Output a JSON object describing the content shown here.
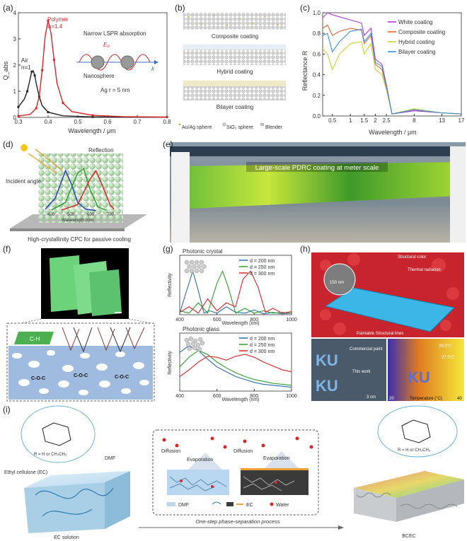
{
  "panels": {
    "a": {
      "label": "(a)",
      "air_label": "Air",
      "air_n": "n=1",
      "polymer_label": "Polymer",
      "polymer_n": "n=1.4",
      "narrow": "Narrow LSPR absorption",
      "e0": "E₀",
      "k": "k",
      "nanosphere": "Nanosphere",
      "ag": "Ag r = 5 nm"
    },
    "b": {
      "label": "(b)",
      "composite": "Composite coating",
      "hybrid": "Hybrid coating",
      "bilayer": "Bilayer coating",
      "legend_auag": "Au/Ag sphere",
      "legend_sio2": "SiO₂ sphere",
      "legend_blender": "Blender"
    },
    "c": {
      "label": "(c)"
    },
    "d": {
      "label": "(d)",
      "incident": "Incident angle",
      "reflection": "Reflection",
      "wavelength": "Wavelength (nm)",
      "caption": "High-crystallinity CPC for passive cooling",
      "ticks": [
        "400",
        "500",
        "600",
        "700"
      ]
    },
    "e": {
      "label": "(e)",
      "banner": "Large-scale PDRC coating at meter scale"
    },
    "f": {
      "label": "(f)",
      "ch": "C-H",
      "coc": "C-O-C"
    },
    "g": {
      "label": "(g)"
    },
    "h": {
      "label": "(h)",
      "scale": "150 nm",
      "structural": "Structural color",
      "thermal": "Thermal radiation",
      "paintable": "Paintable Structural lines",
      "commercial": "Commercial paint",
      "thiswork": "This work",
      "cm": "3 cm",
      "t1": "29.3°C",
      "t2": "27.5°C",
      "temp": "Temperature (°C)",
      "tmin": "20",
      "tmax": "40",
      "ku": "KU"
    },
    "i": {
      "label": "(i)",
      "ec": "Ethyl cellulose (EC)",
      "dmf": "DMF",
      "rgroup": "R = H or CH₂CH₃",
      "rgroup2": "R = H or CH₂CH₃",
      "ecsol": "EC solution",
      "diff1": "Diffusion",
      "evap1": "Evaporation",
      "diff2": "Diffusion",
      "evap2": "Evaporation",
      "leg_dmf": "DMF",
      "leg_ec": "EC",
      "leg_water": "Water",
      "process": "One-step phase-separation process",
      "bcec": "BCEC"
    }
  },
  "chart_data": [
    {
      "id": "a",
      "type": "line",
      "xlabel": "Wavelength / μm",
      "ylabel": "Q_abs",
      "xlim": [
        0.3,
        0.8
      ],
      "ylim": [
        0,
        4
      ],
      "xticks": [
        "0.3",
        "0.4",
        "0.5",
        "0.6",
        "0.7",
        "0.8"
      ],
      "yticks": [
        "0",
        "1",
        "2",
        "3",
        "4"
      ],
      "series": [
        {
          "name": "Air",
          "color": "#222222",
          "x": [
            0.3,
            0.32,
            0.33,
            0.34,
            0.345,
            0.35,
            0.355,
            0.36,
            0.37,
            0.38,
            0.4,
            0.45,
            0.55,
            0.7,
            0.8
          ],
          "y": [
            0.4,
            0.7,
            1.0,
            1.5,
            1.75,
            1.78,
            1.6,
            1.3,
            0.8,
            0.45,
            0.2,
            0.06,
            0.02,
            0.01,
            0.01
          ]
        },
        {
          "name": "Polymer",
          "color": "#d62728",
          "x": [
            0.3,
            0.34,
            0.36,
            0.37,
            0.38,
            0.39,
            0.4,
            0.41,
            0.42,
            0.43,
            0.45,
            0.48,
            0.55,
            0.65,
            0.8
          ],
          "y": [
            0.05,
            0.12,
            0.35,
            0.8,
            1.8,
            3.1,
            3.7,
            3.2,
            2.2,
            1.3,
            0.55,
            0.22,
            0.08,
            0.03,
            0.01
          ]
        }
      ]
    },
    {
      "id": "c",
      "type": "line",
      "xlabel": "Wavelength / μm",
      "ylabel": "Reflectance R",
      "xlim": [
        0.3,
        17
      ],
      "ylim": [
        0,
        1.0
      ],
      "xticks": [
        "0.5",
        "1",
        "1.5",
        "2",
        "2.5",
        "8",
        "13",
        "17"
      ],
      "yticks": [
        "0.0",
        "0.2",
        "0.4",
        "0.6",
        "0.8",
        "1.0"
      ],
      "legend": [
        "White coating",
        "Composite coating",
        "Hybrid coating",
        "Bilayer coating"
      ],
      "series": [
        {
          "name": "White coating",
          "color": "#b23cd4",
          "x": [
            0.3,
            0.4,
            0.5,
            0.7,
            1.0,
            1.4,
            1.5,
            1.8,
            2.0,
            2.3,
            2.5,
            2.7,
            8,
            13,
            17
          ],
          "y": [
            0.95,
            1.0,
            0.98,
            0.96,
            0.93,
            0.9,
            0.78,
            0.85,
            0.55,
            0.5,
            0.3,
            0.02,
            0.05,
            0.03,
            0.02
          ]
        },
        {
          "name": "Composite coating",
          "color": "#e8622b",
          "x": [
            0.3,
            0.4,
            0.5,
            0.7,
            1.0,
            1.4,
            1.5,
            1.8,
            2.0,
            2.3,
            2.5,
            2.7,
            8,
            13,
            17
          ],
          "y": [
            0.85,
            0.88,
            0.78,
            0.82,
            0.85,
            0.83,
            0.7,
            0.78,
            0.5,
            0.45,
            0.27,
            0.02,
            0.06,
            0.03,
            0.02
          ]
        },
        {
          "name": "Hybrid coating",
          "color": "#c8d62a",
          "x": [
            0.3,
            0.4,
            0.5,
            0.7,
            1.0,
            1.4,
            1.5,
            1.8,
            2.0,
            2.3,
            2.5,
            2.7,
            8,
            13,
            17
          ],
          "y": [
            0.65,
            0.6,
            0.45,
            0.6,
            0.7,
            0.72,
            0.6,
            0.7,
            0.45,
            0.4,
            0.25,
            0.02,
            0.07,
            0.03,
            0.02
          ]
        },
        {
          "name": "Bilayer coating",
          "color": "#3a8fe0",
          "x": [
            0.3,
            0.4,
            0.5,
            0.7,
            1.0,
            1.4,
            1.5,
            1.8,
            2.0,
            2.3,
            2.5,
            2.7,
            8,
            13,
            17
          ],
          "y": [
            0.78,
            0.8,
            0.62,
            0.72,
            0.82,
            0.84,
            0.72,
            0.8,
            0.52,
            0.48,
            0.28,
            0.02,
            0.06,
            0.03,
            0.02
          ]
        }
      ]
    },
    {
      "id": "g1",
      "type": "line",
      "title": "Photonic crystal",
      "xlabel": "Wavelength (nm)",
      "ylabel": "Reflectivity",
      "xlim": [
        400,
        1000
      ],
      "ylim": [
        0,
        0.75
      ],
      "xticks": [
        "400",
        "600",
        "800",
        "1000"
      ],
      "legend": [
        "d = 200 nm",
        "d = 250 nm",
        "d = 300 nm"
      ],
      "series": [
        {
          "name": "d = 200 nm",
          "color": "#2b6cb0",
          "x": [
            400,
            430,
            470,
            500,
            530,
            560,
            600,
            650,
            700,
            750,
            800,
            850,
            900,
            950,
            1000
          ],
          "y": [
            0.02,
            0.25,
            0.55,
            0.3,
            0.02,
            0.05,
            0.02,
            0.1,
            0.03,
            0.02,
            0.06,
            0.01,
            0.03,
            0.01,
            0.02
          ]
        },
        {
          "name": "d = 250 nm",
          "color": "#2ca02c",
          "x": [
            400,
            450,
            500,
            550,
            600,
            630,
            660,
            700,
            750,
            800,
            850,
            900,
            950,
            1000
          ],
          "y": [
            0.05,
            0.02,
            0.15,
            0.02,
            0.4,
            0.55,
            0.35,
            0.02,
            0.08,
            0.02,
            0.05,
            0.02,
            0.03,
            0.02
          ]
        },
        {
          "name": "d = 300 nm",
          "color": "#d62728",
          "x": [
            400,
            450,
            500,
            550,
            600,
            650,
            700,
            740,
            780,
            820,
            860,
            900,
            950,
            1000
          ],
          "y": [
            0.03,
            0.1,
            0.02,
            0.2,
            0.05,
            0.15,
            0.1,
            0.45,
            0.55,
            0.35,
            0.03,
            0.08,
            0.02,
            0.04
          ]
        }
      ]
    },
    {
      "id": "g2",
      "type": "line",
      "title": "Photonic glass",
      "xlabel": "Wavelength (nm)",
      "ylabel": "Reflectivity",
      "xlim": [
        400,
        1000
      ],
      "ylim": [
        0,
        0.6
      ],
      "xticks": [
        "400",
        "600",
        "800",
        "1000"
      ],
      "legend": [
        "d = 200 nm",
        "d = 250 nm",
        "d = 300 nm"
      ],
      "series": [
        {
          "name": "d = 200 nm",
          "color": "#2b6cb0",
          "x": [
            400,
            450,
            500,
            550,
            600,
            650,
            700,
            750,
            800,
            850,
            900,
            950,
            1000
          ],
          "y": [
            0.4,
            0.47,
            0.42,
            0.33,
            0.25,
            0.2,
            0.15,
            0.12,
            0.09,
            0.07,
            0.06,
            0.05,
            0.04
          ]
        },
        {
          "name": "d = 250 nm",
          "color": "#2ca02c",
          "x": [
            400,
            450,
            500,
            550,
            600,
            650,
            700,
            750,
            800,
            850,
            900,
            950,
            1000
          ],
          "y": [
            0.25,
            0.35,
            0.42,
            0.38,
            0.3,
            0.24,
            0.19,
            0.15,
            0.12,
            0.1,
            0.08,
            0.07,
            0.06
          ]
        },
        {
          "name": "d = 300 nm",
          "color": "#d62728",
          "x": [
            400,
            450,
            500,
            550,
            600,
            650,
            700,
            750,
            800,
            850,
            900,
            950,
            1000
          ],
          "y": [
            0.15,
            0.22,
            0.3,
            0.36,
            0.35,
            0.32,
            0.36,
            0.38,
            0.35,
            0.3,
            0.26,
            0.22,
            0.2
          ]
        }
      ]
    },
    {
      "id": "d",
      "type": "line",
      "xlabel": "Wavelength (nm)",
      "series": [
        {
          "name": "blue",
          "color": "#2a3fc1",
          "x": [
            400,
            450,
            500,
            530,
            560,
            600,
            650
          ],
          "y": [
            0.05,
            0.3,
            0.9,
            0.6,
            0.2,
            0.05,
            0.02
          ]
        },
        {
          "name": "green",
          "color": "#2ca02c",
          "x": [
            430,
            500,
            560,
            590,
            620,
            660,
            700
          ],
          "y": [
            0.03,
            0.2,
            0.85,
            0.95,
            0.5,
            0.1,
            0.03
          ]
        },
        {
          "name": "red",
          "color": "#d62728",
          "x": [
            480,
            560,
            620,
            650,
            680,
            720,
            740
          ],
          "y": [
            0.03,
            0.15,
            0.7,
            0.9,
            0.6,
            0.15,
            0.05
          ]
        }
      ]
    }
  ]
}
